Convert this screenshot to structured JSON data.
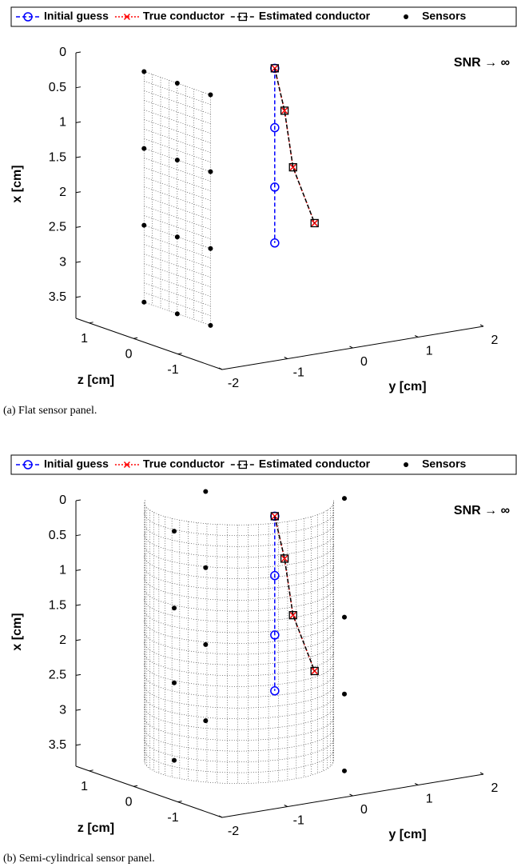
{
  "chart_data": [
    {
      "type": "line3d",
      "xlabel": "x [cm]",
      "ylabel": "y [cm]",
      "zlabel": "z [cm]",
      "annotation": "SNR → ∞",
      "caption": "(a) Flat sensor panel.",
      "xlim": [
        0,
        3.8
      ],
      "xticks": [
        0,
        0.5,
        1,
        1.5,
        2,
        2.5,
        3,
        3.5
      ],
      "xdir": "reverse",
      "ylim": [
        -2,
        2
      ],
      "yticks": [
        -2,
        -1,
        0,
        1,
        2
      ],
      "zlim": [
        -2,
        1.3
      ],
      "zticks": [
        -1,
        0,
        1
      ],
      "legend": "top",
      "series": [
        {
          "name": "Initial guess",
          "color": "#0000ff",
          "marker": "circle",
          "linestyle": "dashed",
          "x": [
            0.3,
            1.15,
            2.0,
            2.8
          ],
          "y": [
            0.23,
            0.23,
            0.23,
            0.23
          ],
          "z": [
            0.1,
            0.1,
            0.1,
            0.1
          ]
        },
        {
          "name": "True conductor",
          "color": "#ff0000",
          "marker": "cross",
          "linestyle": "dotted",
          "x": [
            0.3,
            0.93,
            1.76,
            2.61
          ],
          "y": [
            0.23,
            0.38,
            0.51,
            0.84
          ],
          "z": [
            0.1,
            0.1,
            0.1,
            0.1
          ]
        },
        {
          "name": "Estimated conductor",
          "color": "#000000",
          "marker": "square",
          "linestyle": "dashed",
          "x": [
            0.3,
            0.93,
            1.76,
            2.61
          ],
          "y": [
            0.23,
            0.38,
            0.51,
            0.84
          ],
          "z": [
            0.1,
            0.1,
            0.1,
            0.1
          ]
        },
        {
          "name": "Sensors",
          "color": "#000000",
          "marker": "dot",
          "linestyle": "none",
          "x": [
            0.25,
            0.25,
            0.25,
            1.35,
            1.35,
            1.35,
            2.45,
            2.45,
            2.45,
            3.55,
            3.55,
            3.55
          ],
          "y": [
            -1.33,
            -1.33,
            -1.33,
            -1.33,
            -1.33,
            -1.33,
            -1.33,
            -1.33,
            -1.33,
            -1.33,
            -1.33,
            -1.33
          ],
          "z": [
            0.75,
            0,
            -0.75,
            0.75,
            0,
            -0.75,
            0.75,
            0,
            -0.75,
            0.75,
            0,
            -0.75
          ]
        }
      ]
    },
    {
      "type": "line3d",
      "xlabel": "x [cm]",
      "ylabel": "y [cm]",
      "zlabel": "z [cm]",
      "annotation": "SNR → ∞",
      "caption": "(b) Semi-cylindrical sensor panel.",
      "xlim": [
        0,
        3.8
      ],
      "xticks": [
        0,
        0.5,
        1,
        1.5,
        2,
        2.5,
        3,
        3.5
      ],
      "xdir": "reverse",
      "ylim": [
        -2,
        2
      ],
      "yticks": [
        -2,
        -1,
        0,
        1,
        2
      ],
      "zlim": [
        -2,
        1.3
      ],
      "zticks": [
        -1,
        0,
        1
      ],
      "legend": "top",
      "series": [
        {
          "name": "Initial guess",
          "color": "#0000ff",
          "marker": "circle",
          "linestyle": "dashed",
          "x": [
            0.3,
            1.15,
            2.0,
            2.8
          ],
          "y": [
            0.23,
            0.23,
            0.23,
            0.23
          ],
          "z": [
            0.1,
            0.1,
            0.1,
            0.1
          ]
        },
        {
          "name": "True conductor",
          "color": "#ff0000",
          "marker": "cross",
          "linestyle": "dotted",
          "x": [
            0.3,
            0.93,
            1.76,
            2.61
          ],
          "y": [
            0.23,
            0.38,
            0.51,
            0.84
          ],
          "z": [
            0.1,
            0.1,
            0.1,
            0.1
          ]
        },
        {
          "name": "Estimated conductor",
          "color": "#000000",
          "marker": "square",
          "linestyle": "dashed",
          "x": [
            0.3,
            0.93,
            1.76,
            2.61
          ],
          "y": [
            0.23,
            0.38,
            0.51,
            0.84
          ],
          "z": [
            0.1,
            0.1,
            0.1,
            0.1
          ]
        },
        {
          "name": "Sensors",
          "color": "#000000",
          "marker": "dot",
          "linestyle": "none",
          "x": [
            -0.15,
            1.55,
            2.65,
            3.75,
            0.11,
            1.2,
            2.3,
            3.39,
            0.44,
            1.54,
            2.61,
            3.72
          ],
          "y": [
            0.55,
            0.55,
            0.55,
            0.55,
            -0.15,
            -0.15,
            -0.15,
            -0.15,
            -0.97,
            -0.97,
            -0.97,
            -0.97
          ],
          "z": [
            -1,
            -1,
            -1,
            -1,
            1.1,
            1.1,
            1.1,
            1.1,
            0.6,
            0.6,
            0.6,
            0.6
          ]
        }
      ]
    }
  ]
}
